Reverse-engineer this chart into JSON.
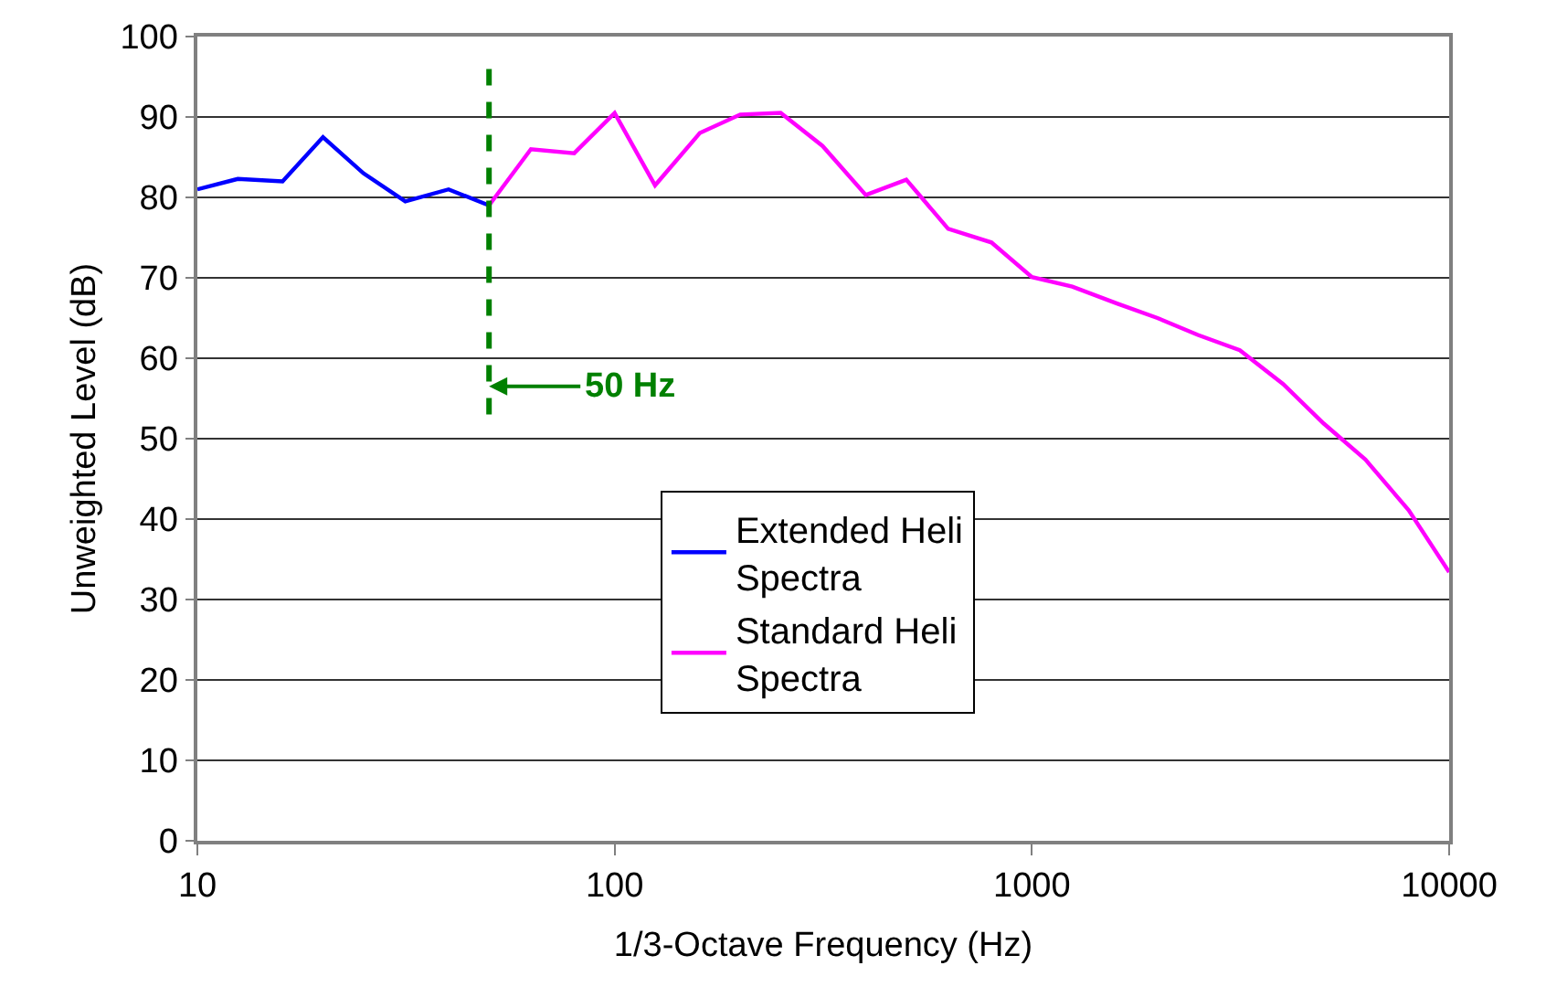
{
  "chart_data": {
    "type": "line",
    "xlabel": "1/3-Octave Frequency (Hz)",
    "ylabel": "Unweighted Level (dB)",
    "log": "x",
    "xlim": [
      10,
      10000
    ],
    "xticks": [
      10,
      100,
      1000,
      10000
    ],
    "ylim": [
      0,
      100
    ],
    "yticks": [
      0,
      10,
      20,
      30,
      40,
      50,
      60,
      70,
      80,
      90,
      100
    ],
    "grid": "y",
    "legend": "bottom",
    "marker": "none",
    "line_style": "solid",
    "series": [
      {
        "name": "Extended Heli Spectra",
        "color": "#0000ff",
        "x": [
          10,
          12.5,
          16,
          20,
          25,
          31.5,
          40,
          50
        ],
        "values": [
          81,
          82.3,
          82,
          87.5,
          83,
          79.5,
          81,
          79
        ]
      },
      {
        "name": "Standard Heli Spectra",
        "color": "#ff00ff",
        "x": [
          50,
          63,
          80,
          100,
          125,
          160,
          200,
          250,
          315,
          400,
          500,
          630,
          800,
          1000,
          1250,
          1600,
          2000,
          2500,
          3150,
          4000,
          5000,
          6300,
          8000,
          10000
        ],
        "values": [
          79,
          86,
          85.5,
          90.5,
          81.5,
          88,
          90.3,
          90.5,
          86.4,
          80.3,
          82.2,
          76.1,
          74.4,
          70.1,
          68.9,
          66.8,
          65,
          62.9,
          61,
          56.8,
          51.9,
          47.4,
          41.1,
          33.4
        ]
      }
    ],
    "ref_lines": [
      {
        "axis": "x",
        "value": 50,
        "label": "50 Hz",
        "color": "#008000",
        "line_style": "dashed"
      }
    ]
  }
}
